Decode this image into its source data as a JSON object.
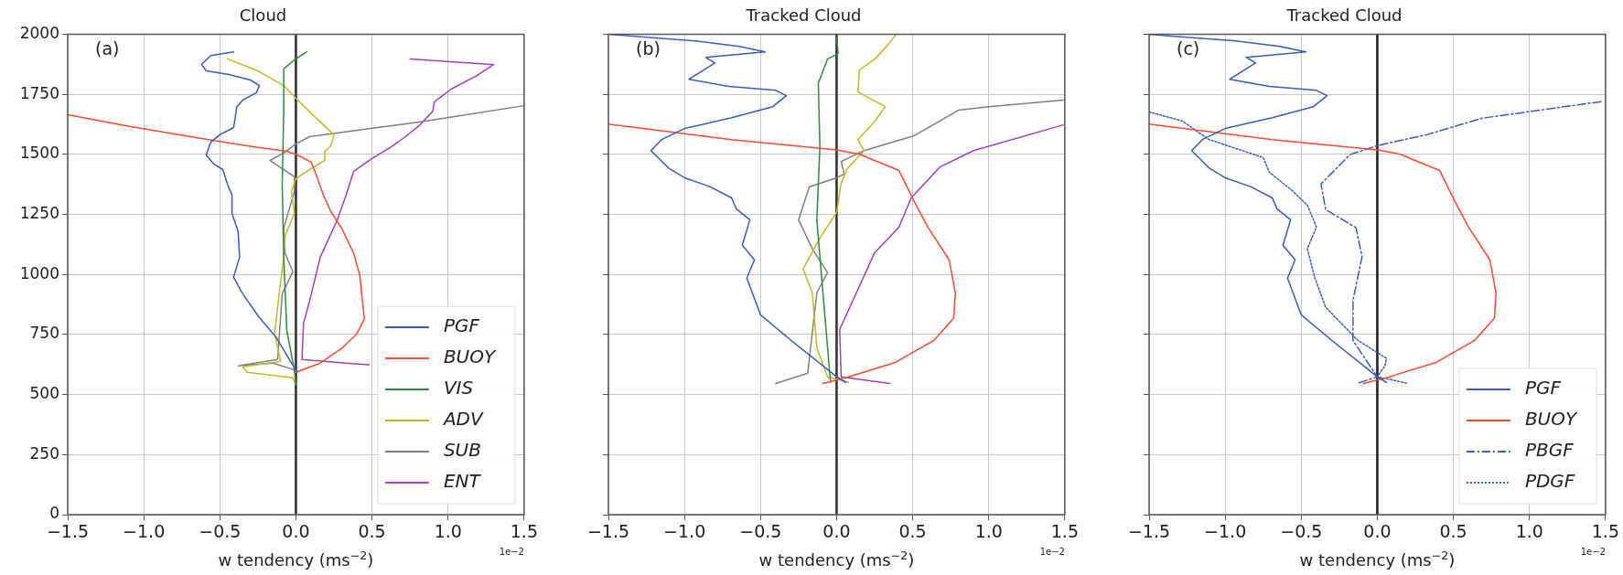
{
  "chart_data": [
    {
      "type": "line",
      "title": "Cloud",
      "xlabel": "w tendency (ms$^{−2}$)",
      "annotations": [
        "(a)",
        "1e−2"
      ],
      "xlim": [
        -1.5,
        1.5
      ],
      "xticks": [
        {
          "value": -1.5,
          "label": "−1.5"
        },
        {
          "value": -1.0,
          "label": "−1.0"
        },
        {
          "value": -0.5,
          "label": "−0.5"
        },
        {
          "value": 0,
          "label": "0.0"
        },
        {
          "value": 0.5,
          "label": "0.5"
        },
        {
          "value": 1.0,
          "label": "1.0"
        },
        {
          "value": 1.5,
          "label": "1.5"
        }
      ],
      "ylim": [
        0,
        2000
      ],
      "yticks": [
        0,
        250,
        500,
        750,
        1000,
        1250,
        1500,
        1750,
        2000
      ],
      "grid": true,
      "legend": "bottom right",
      "line_style": "solid",
      "ref_lines": [
        {
          "axis": "x",
          "value": 0,
          "color": "#333333"
        }
      ],
      "series": [
        {
          "name": "PGF",
          "color": "#3b5bbf",
          "x": [
            -0.41,
            -0.56,
            -0.62,
            -0.59,
            -0.44,
            -0.3,
            -0.24,
            -0.26,
            -0.35,
            -0.39,
            -0.4,
            -0.41,
            -0.5,
            -0.56,
            -0.59,
            -0.54,
            -0.48,
            -0.45,
            -0.42,
            -0.42,
            -0.38,
            -0.37,
            -0.41,
            -0.35,
            -0.25,
            -0.13,
            0
          ],
          "values": [
            1927,
            1912,
            1875,
            1848,
            1833,
            1810,
            1787,
            1757,
            1726,
            1696,
            1650,
            1612,
            1582,
            1551,
            1498,
            1460,
            1437,
            1376,
            1331,
            1255,
            1179,
            1072,
            989,
            920,
            829,
            738,
            601
          ]
        },
        {
          "name": "BUOY",
          "color": "#ff4a30",
          "x": [
            -1.5,
            -1.12,
            -0.63,
            -0.25,
            -0.06,
            0.01,
            0.1,
            0.13,
            0.18,
            0.23,
            0.3,
            0.38,
            0.42,
            0.45,
            0.4,
            0.3,
            0.16,
            0
          ],
          "values": [
            1665,
            1620,
            1567,
            1529,
            1513,
            1498,
            1468,
            1422,
            1331,
            1262,
            1194,
            1087,
            996,
            814,
            753,
            692,
            631,
            593
          ]
        },
        {
          "name": "VIS",
          "color": "#2e8b3e",
          "x": [
            0.07,
            -0.01,
            -0.08,
            -0.08,
            -0.09,
            -0.08,
            -0.06,
            -0.01,
            0
          ],
          "values": [
            1927,
            1894,
            1856,
            1681,
            1376,
            1072,
            768,
            601,
            540
          ]
        },
        {
          "name": "ADV",
          "color": "#bcbd22",
          "x": [
            -0.45,
            -0.25,
            -0.08,
            0,
            0.11,
            0.25,
            0.23,
            0.19,
            0.19,
            0.11,
            0,
            -0.03,
            -0.01,
            -0.07,
            -0.08,
            -0.11,
            -0.14,
            -0.1,
            -0.35,
            -0.32,
            -0.02,
            0
          ],
          "values": [
            1898,
            1848,
            1787,
            1734,
            1665,
            1582,
            1536,
            1513,
            1475,
            1445,
            1399,
            1346,
            1255,
            1163,
            1072,
            920,
            753,
            639,
            616,
            593,
            570,
            540
          ]
        },
        {
          "name": "SUB",
          "color": "#808080",
          "x": [
            1.5,
            0.81,
            0.09,
            0,
            -0.08,
            -0.17,
            -0.01,
            -0.01,
            -0.08,
            -0.07,
            -0.02,
            -0.09,
            -0.12,
            -0.38,
            -0.15,
            0
          ],
          "values": [
            1703,
            1635,
            1574,
            1544,
            1506,
            1475,
            1407,
            1346,
            1194,
            1087,
            1011,
            920,
            646,
            620,
            631,
            601
          ]
        },
        {
          "name": "ENT",
          "color": "#a040c0",
          "x": [
            0.75,
            1.3,
            1.18,
            1.02,
            0.91,
            0.9,
            0.81,
            0.72,
            0.62,
            0.5,
            0.38,
            0.33,
            0.27,
            0.16,
            0.09,
            0.05,
            0.04,
            0.33,
            0.48
          ],
          "values": [
            1898,
            1874,
            1825,
            1772,
            1719,
            1681,
            1620,
            1574,
            1529,
            1483,
            1430,
            1331,
            1224,
            1072,
            890,
            798,
            646,
            631,
            624
          ]
        }
      ]
    },
    {
      "type": "line",
      "title": "Tracked Cloud",
      "xlabel": "w tendency (ms$^{−2}$)",
      "annotations": [
        "(b)",
        "1e−2"
      ],
      "xlim": [
        -1.5,
        1.5
      ],
      "xticks": [
        {
          "value": -1.5,
          "label": "−1.5"
        },
        {
          "value": -1.0,
          "label": "−1.0"
        },
        {
          "value": -0.5,
          "label": "−0.5"
        },
        {
          "value": 0,
          "label": "0.0"
        },
        {
          "value": 0.5,
          "label": "0.5"
        },
        {
          "value": 1.0,
          "label": "1.0"
        },
        {
          "value": 1.5,
          "label": "1.5"
        }
      ],
      "ylim": [
        0,
        2000
      ],
      "yticks": [
        0,
        250,
        500,
        750,
        1000,
        1250,
        1500,
        1750,
        2000
      ],
      "tick_labels": "x",
      "grid": true,
      "line_style": "solid",
      "ref_lines": [
        {
          "axis": "x",
          "value": 0,
          "color": "#333333"
        }
      ],
      "series": [
        {
          "color": "#3b5bbf",
          "x": [
            -1.5,
            -0.93,
            -0.64,
            -0.47,
            -0.86,
            -0.8,
            -0.97,
            -0.71,
            -0.4,
            -0.33,
            -0.42,
            -0.69,
            -1.0,
            -1.15,
            -1.22,
            -1.1,
            -1.0,
            -0.83,
            -0.69,
            -0.66,
            -0.57,
            -0.62,
            -0.54,
            -0.59,
            -0.5,
            -0.3,
            0,
            0.06
          ],
          "values": [
            2000,
            1973,
            1950,
            1927,
            1904,
            1881,
            1813,
            1783,
            1767,
            1745,
            1699,
            1653,
            1608,
            1562,
            1516,
            1441,
            1403,
            1365,
            1319,
            1274,
            1228,
            1122,
            1061,
            985,
            832,
            726,
            574,
            551
          ]
        },
        {
          "color": "#ff4a30",
          "x": [
            -1.5,
            -0.69,
            0,
            0.15,
            0.41,
            0.51,
            0.6,
            0.74,
            0.78,
            0.77,
            0.64,
            0.39,
            0.08,
            -0.09
          ],
          "values": [
            1626,
            1562,
            1519,
            1501,
            1433,
            1304,
            1197,
            1061,
            924,
            818,
            726,
            635,
            574,
            546
          ]
        },
        {
          "color": "#2e8b3e",
          "x": [
            0,
            0.01,
            -0.06,
            -0.12,
            -0.11,
            -0.13,
            -0.09,
            -0.04
          ],
          "values": [
            1988,
            1920,
            1897,
            1798,
            1532,
            1228,
            924,
            551
          ]
        },
        {
          "color": "#bcbd22",
          "x": [
            0.39,
            0.34,
            0.25,
            0.15,
            0.14,
            0.32,
            0.25,
            0.14,
            0.18,
            0.07,
            0.03,
            0,
            -0.11,
            -0.22,
            -0.16,
            -0.13,
            -0.06,
            0.08
          ],
          "values": [
            2000,
            1958,
            1897,
            1851,
            1760,
            1699,
            1638,
            1562,
            1516,
            1441,
            1380,
            1258,
            1152,
            1023,
            924,
            696,
            574,
            551
          ]
        },
        {
          "color": "#808080",
          "x": [
            1.49,
            1.0,
            0.8,
            0.51,
            0.18,
            0.03,
            0.05,
            0,
            -0.18,
            -0.25,
            -0.16,
            -0.06,
            -0.13,
            -0.19,
            -0.4
          ],
          "values": [
            1726,
            1699,
            1684,
            1578,
            1516,
            1471,
            1418,
            1403,
            1365,
            1228,
            1107,
            1008,
            924,
            589,
            546
          ]
        },
        {
          "color": "#a040c0",
          "x": [
            1.49,
            0.9,
            0.68,
            0.49,
            0.41,
            0.25,
            0.13,
            0.02,
            0.03,
            0.35
          ],
          "values": [
            1623,
            1516,
            1448,
            1319,
            1197,
            1091,
            924,
            771,
            574,
            546
          ]
        }
      ]
    },
    {
      "type": "line",
      "title": "Tracked Cloud",
      "xlabel": "w tendency (ms$^{−2}$)",
      "annotations": [
        "(c)",
        "1e−2"
      ],
      "xlim": [
        -1.5,
        1.5
      ],
      "xticks": [
        {
          "value": -1.5,
          "label": "−1.5"
        },
        {
          "value": -1.0,
          "label": "−1.0"
        },
        {
          "value": -0.5,
          "label": "−0.5"
        },
        {
          "value": 0,
          "label": "0.0"
        },
        {
          "value": 0.5,
          "label": "0.5"
        },
        {
          "value": 1.0,
          "label": "1.0"
        },
        {
          "value": 1.5,
          "label": "1.5"
        }
      ],
      "ylim": [
        0,
        2000
      ],
      "yticks": [
        0,
        250,
        500,
        750,
        1000,
        1250,
        1500,
        1750,
        2000
      ],
      "tick_labels": "x",
      "grid": true,
      "legend": "bottom right",
      "ref_lines": [
        {
          "axis": "x",
          "value": 0,
          "color": "#222222"
        }
      ],
      "series": [
        {
          "name": "PGF",
          "color": "#3b5bbf",
          "line_style": "solid",
          "x": [
            -1.5,
            -0.93,
            -0.64,
            -0.47,
            -0.86,
            -0.8,
            -0.97,
            -0.71,
            -0.4,
            -0.33,
            -0.42,
            -0.69,
            -1.0,
            -1.15,
            -1.22,
            -1.1,
            -1.0,
            -0.83,
            -0.69,
            -0.66,
            -0.57,
            -0.62,
            -0.54,
            -0.59,
            -0.5,
            -0.3,
            0,
            0.06
          ],
          "values": [
            2000,
            1973,
            1950,
            1927,
            1904,
            1881,
            1813,
            1783,
            1767,
            1745,
            1699,
            1653,
            1608,
            1562,
            1516,
            1441,
            1403,
            1365,
            1319,
            1274,
            1228,
            1122,
            1061,
            985,
            832,
            726,
            574,
            551
          ]
        },
        {
          "name": "BUOY",
          "color": "#ff4a30",
          "line_style": "solid",
          "x": [
            -1.5,
            -0.69,
            0,
            0.15,
            0.41,
            0.51,
            0.6,
            0.74,
            0.78,
            0.77,
            0.64,
            0.39,
            0.08,
            -0.09
          ],
          "values": [
            1626,
            1562,
            1519,
            1501,
            1433,
            1304,
            1197,
            1061,
            924,
            818,
            726,
            635,
            574,
            546
          ]
        },
        {
          "name": "PBGF",
          "color": "#3b5bbf",
          "line_style": "dashed",
          "x": [
            1.47,
            0.69,
            0.33,
            0,
            -0.18,
            -0.37,
            -0.34,
            -0.14,
            -0.1,
            -0.16,
            -0.16,
            0,
            -0.13
          ],
          "values": [
            1720,
            1651,
            1583,
            1537,
            1499,
            1377,
            1271,
            1195,
            1074,
            892,
            725,
            574,
            547
          ]
        },
        {
          "name": "PDGF",
          "color": "#3b5bbf",
          "line_style": "dotted",
          "x": [
            -1.5,
            -1.28,
            -1.11,
            -0.75,
            -0.71,
            -0.56,
            -0.46,
            -0.4,
            -0.46,
            -0.41,
            -0.34,
            -0.13,
            0.06,
            0.05,
            0,
            0.2
          ],
          "values": [
            1677,
            1639,
            1563,
            1487,
            1426,
            1350,
            1289,
            1198,
            1107,
            985,
            864,
            727,
            651,
            620,
            574,
            547
          ]
        }
      ]
    }
  ]
}
